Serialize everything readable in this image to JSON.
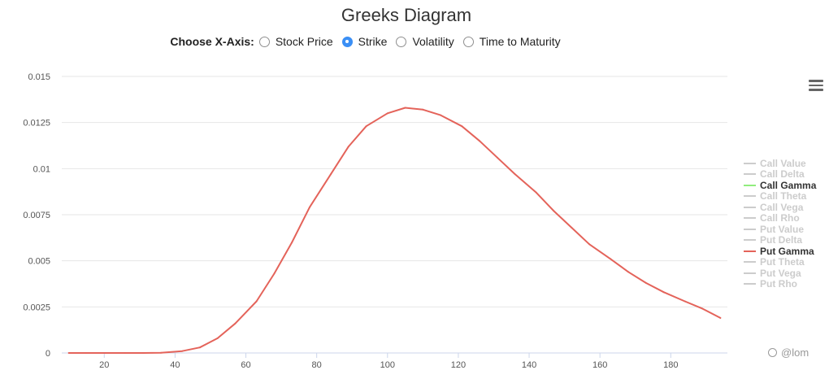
{
  "title": "Greeks Diagram",
  "axis_chooser": {
    "label": "Choose X-Axis:",
    "options": [
      {
        "label": "Stock Price",
        "checked": false
      },
      {
        "label": "Strike",
        "checked": true
      },
      {
        "label": "Volatility",
        "checked": false
      },
      {
        "label": "Time to Maturity",
        "checked": false
      }
    ]
  },
  "menu_icon": "hamburger-menu-icon",
  "watermark": "@lom",
  "legend": [
    {
      "label": "Call Value",
      "visible": false,
      "color": "#cccccc"
    },
    {
      "label": "Call Delta",
      "visible": false,
      "color": "#cccccc"
    },
    {
      "label": "Call Gamma",
      "visible": true,
      "color": "#90ed7d"
    },
    {
      "label": "Call Theta",
      "visible": false,
      "color": "#cccccc"
    },
    {
      "label": "Call Vega",
      "visible": false,
      "color": "#cccccc"
    },
    {
      "label": "Call Rho",
      "visible": false,
      "color": "#cccccc"
    },
    {
      "label": "Put Value",
      "visible": false,
      "color": "#cccccc"
    },
    {
      "label": "Put Delta",
      "visible": false,
      "color": "#cccccc"
    },
    {
      "label": "Put Gamma",
      "visible": true,
      "color": "#e4635a"
    },
    {
      "label": "Put Theta",
      "visible": false,
      "color": "#cccccc"
    },
    {
      "label": "Put Vega",
      "visible": false,
      "color": "#cccccc"
    },
    {
      "label": "Put Rho",
      "visible": false,
      "color": "#cccccc"
    }
  ],
  "chart_data": {
    "type": "line",
    "title": "Greeks Diagram",
    "xlabel": "",
    "ylabel": "",
    "xlim": [
      8,
      196
    ],
    "ylim": [
      0,
      0.015
    ],
    "x_ticks": [
      20,
      40,
      60,
      80,
      100,
      120,
      140,
      160,
      180
    ],
    "y_ticks": [
      "0",
      "0.0025",
      "0.005",
      "0.0075",
      "0.01",
      "0.0125",
      "0.015"
    ],
    "grid": true,
    "legend_position": "right",
    "series": [
      {
        "name": "Put Gamma",
        "color": "#e4635a",
        "x": [
          10,
          15,
          20,
          26,
          31,
          36,
          42,
          47,
          52,
          57,
          63,
          68,
          73,
          78,
          84,
          89,
          94,
          100,
          105,
          110,
          115,
          121,
          126,
          131,
          136,
          142,
          147,
          152,
          157,
          163,
          168,
          173,
          178,
          184,
          189,
          194
        ],
        "y": [
          0.0,
          0.0,
          0.0,
          0.0,
          0.0,
          1e-05,
          0.0001,
          0.0003,
          0.0008,
          0.0016,
          0.0028,
          0.0043,
          0.006,
          0.0079,
          0.0097,
          0.0112,
          0.0123,
          0.013,
          0.0133,
          0.0132,
          0.0129,
          0.0123,
          0.0115,
          0.0106,
          0.0097,
          0.0087,
          0.0077,
          0.0068,
          0.0059,
          0.0051,
          0.0044,
          0.0038,
          0.0033,
          0.0028,
          0.0024,
          0.0019
        ]
      }
    ]
  }
}
